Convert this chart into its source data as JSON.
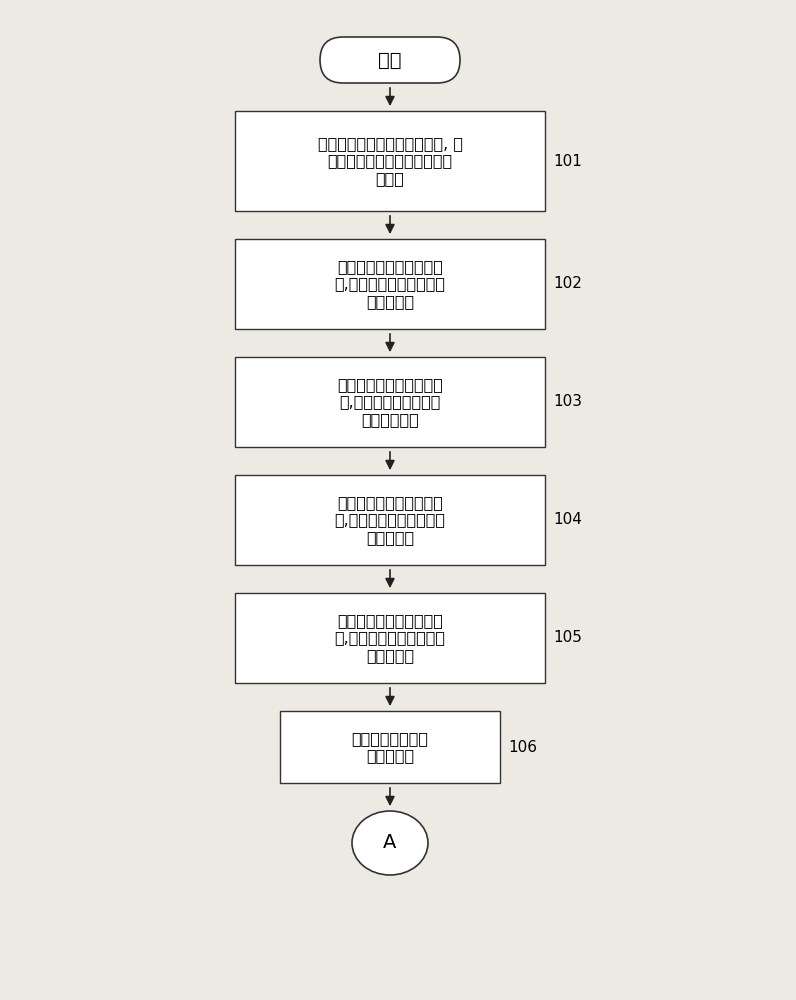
{
  "background_color": "#ede9e3",
  "start_label": "开始",
  "connector_label": "A",
  "steps": [
    {
      "text_lines": [
        "在面板上显示一第一白色影像, 测",
        "量出对应的一组原始白色测量",
        "刺激値"
      ],
      "label": "101"
    },
    {
      "text_lines": [
        "在面板上显示一全红色影",
        "像,测量出对应的一组红色",
        "测量刺激値"
      ],
      "label": "102"
    },
    {
      "text_lines": [
        "在面板上显示一全绻色影",
        "像,测量出对应的一组绻",
        "色测量刺激値"
      ],
      "label": "103"
    },
    {
      "text_lines": [
        "在面板上显示一全蓝色影",
        "像,测量出对应的一组蓝色",
        "测量刺激値"
      ],
      "label": "104"
    },
    {
      "text_lines": [
        "在面板上显示一全黑色影",
        "像,测量出对应的一组黑色",
        "测量刺激値"
      ],
      "label": "105"
    },
    {
      "text_lines": [
        "计算该面板的白色",
        "亮度曲线値"
      ],
      "label": "106"
    }
  ],
  "fig_width": 7.96,
  "fig_height": 10.0,
  "dpi": 100
}
